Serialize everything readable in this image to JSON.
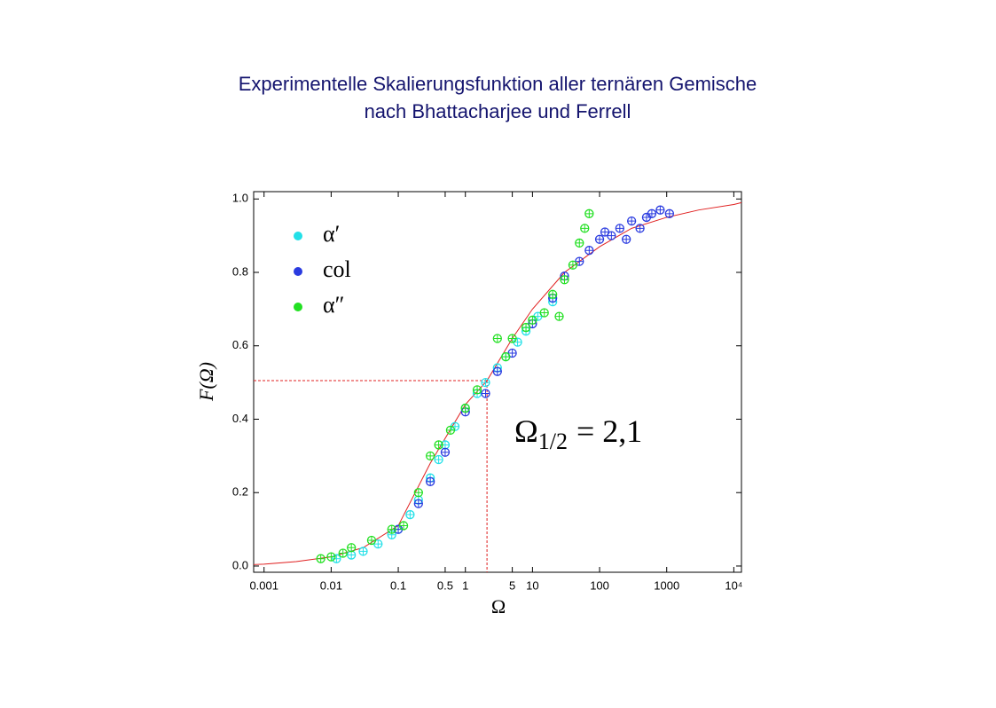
{
  "chart_data": {
    "type": "scatter",
    "title": "Experimentelle Skalierungsfunktion aller ternären Gemische",
    "subtitle": "nach Bhattacharjee und Ferrell",
    "x_label": "Ω",
    "y_label": "F(Ω)",
    "xscale": "log",
    "grid": false,
    "legend": "upper left",
    "xlim": [
      0.0007,
      13000
    ],
    "xticks": [
      0.001,
      0.01,
      0.1,
      0.5,
      1,
      5,
      10,
      100,
      1000,
      {
        "value": 10000,
        "label": "10⁴"
      }
    ],
    "ylim": [
      -0.017,
      1.02
    ],
    "yticks": [
      {
        "value": 0,
        "label": "0.0"
      },
      0.2,
      0.4,
      0.6,
      0.8,
      {
        "value": 1,
        "label": "1.0"
      }
    ],
    "series": [
      {
        "name": "α′",
        "color": "#22e0e8",
        "x": [
          0.012,
          0.02,
          0.03,
          0.05,
          0.08,
          0.1,
          0.15,
          0.2,
          0.3,
          0.4,
          0.5,
          0.7,
          1,
          1.5,
          2,
          3,
          4,
          6,
          8,
          12,
          20
        ],
        "values": [
          0.02,
          0.03,
          0.04,
          0.06,
          0.085,
          0.1,
          0.14,
          0.18,
          0.24,
          0.29,
          0.33,
          0.38,
          0.43,
          0.47,
          0.5,
          0.54,
          0.57,
          0.61,
          0.64,
          0.68,
          0.72
        ]
      },
      {
        "name": "col",
        "color": "#2a3be0",
        "x": [
          0.1,
          0.2,
          0.3,
          0.5,
          1,
          2,
          3,
          5,
          10,
          20,
          30,
          50,
          70,
          100,
          120,
          150,
          200,
          250,
          300,
          400,
          500,
          600,
          800,
          1100
        ],
        "values": [
          0.1,
          0.17,
          0.23,
          0.31,
          0.42,
          0.47,
          0.53,
          0.58,
          0.66,
          0.73,
          0.79,
          0.83,
          0.86,
          0.89,
          0.91,
          0.9,
          0.92,
          0.89,
          0.94,
          0.92,
          0.95,
          0.96,
          0.97,
          0.96
        ]
      },
      {
        "name": "α″",
        "color": "#22e022",
        "x": [
          0.007,
          0.01,
          0.015,
          0.02,
          0.04,
          0.08,
          0.12,
          0.2,
          0.3,
          0.4,
          0.6,
          1,
          1.5,
          3,
          4,
          5,
          8,
          10,
          15,
          20,
          25,
          30,
          40,
          50,
          60,
          70
        ],
        "values": [
          0.02,
          0.025,
          0.035,
          0.05,
          0.07,
          0.1,
          0.11,
          0.2,
          0.3,
          0.33,
          0.37,
          0.43,
          0.48,
          0.62,
          0.57,
          0.62,
          0.65,
          0.67,
          0.69,
          0.74,
          0.68,
          0.78,
          0.82,
          0.88,
          0.92,
          0.96
        ]
      }
    ],
    "fit_curve": {
      "color": "#e02020",
      "x": [
        0.0007,
        0.001,
        0.003,
        0.01,
        0.03,
        0.1,
        0.3,
        1,
        2.1,
        5,
        10,
        30,
        100,
        300,
        1000,
        3000,
        10000,
        13000
      ],
      "values": [
        0.004,
        0.005,
        0.012,
        0.025,
        0.05,
        0.11,
        0.28,
        0.44,
        0.505,
        0.62,
        0.7,
        0.8,
        0.87,
        0.92,
        0.95,
        0.97,
        0.985,
        0.99
      ]
    },
    "reference": {
      "x": 2.1,
      "y": 0.505,
      "color": "#e02020"
    },
    "annotation": {
      "symbol": "Ω",
      "subscript": "1/2",
      "text": "= 2,1"
    }
  }
}
